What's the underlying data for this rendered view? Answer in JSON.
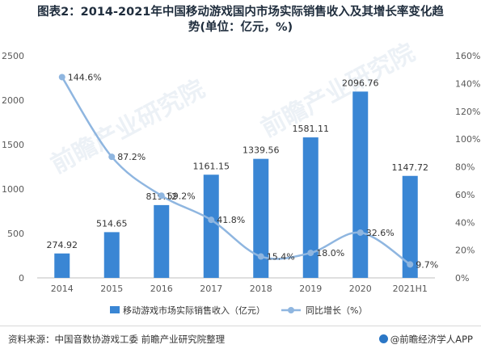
{
  "title_line1": "图表2：2014-2021年中国移动游戏国内市场实际销售收入及其增长率变化趋",
  "title_line2": "势(单位：亿元，%)",
  "watermark": "前瞻产业研究院",
  "source": "资料来源：中国音数协游戏工委 前瞻产业研究院整理",
  "brand": "@前瞻经济学人APP",
  "colors": {
    "bar": "#3a86d4",
    "line": "#8fb6e0",
    "axis": "#595959",
    "title": "#1f2d3d"
  },
  "chart_data": {
    "type": "bar",
    "categories": [
      "2014",
      "2015",
      "2016",
      "2017",
      "2018",
      "2019",
      "2020",
      "2021H1"
    ],
    "series": [
      {
        "name": "移动游戏市场实际销售收入（亿元）",
        "type": "bar",
        "axis": "left",
        "values": [
          274.92,
          514.65,
          819.12,
          1161.15,
          1339.56,
          1581.11,
          2096.76,
          1147.72
        ],
        "labels": [
          "274.92",
          "514.65",
          "819.12",
          "1161.15",
          "1339.56",
          "1581.11",
          "2096.76",
          "1147.72"
        ]
      },
      {
        "name": "同比增长（%）",
        "type": "line",
        "axis": "right",
        "values": [
          144.6,
          87.2,
          59.2,
          41.8,
          15.4,
          18.0,
          32.6,
          9.7
        ],
        "labels": [
          "144.6%",
          "87.2%",
          "59.2%",
          "41.8%",
          "15.4%",
          "18.0%",
          "32.6%",
          "9.7%"
        ]
      }
    ],
    "y_left": {
      "min": 0,
      "max": 2500,
      "ticks": [
        "0",
        "500",
        "1000",
        "1500",
        "2000",
        "2500"
      ]
    },
    "y_right": {
      "min": 0,
      "max": 160,
      "ticks": [
        "0%",
        "20%",
        "40%",
        "60%",
        "80%",
        "100%",
        "120%",
        "140%",
        "160%"
      ]
    },
    "grid": false,
    "legend_position": "bottom"
  }
}
